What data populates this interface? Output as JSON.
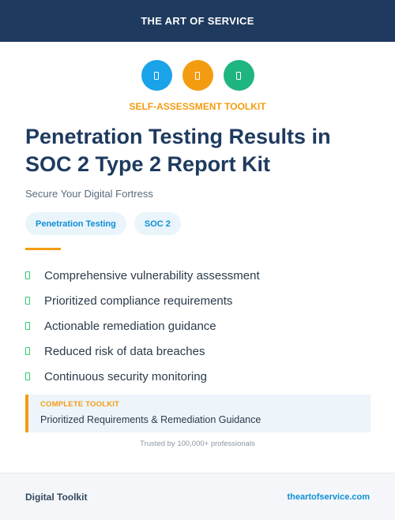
{
  "header": {
    "brand": "THE ART OF SERVICE"
  },
  "icons": [
    {
      "name": "document-icon",
      "color": "#1aa3e8"
    },
    {
      "name": "document-icon",
      "color": "#f39c12"
    },
    {
      "name": "document-icon",
      "color": "#1fb57f"
    }
  ],
  "kicker": "SELF-ASSESSMENT TOOLKIT",
  "title": "Penetration Testing Results in SOC 2 Type 2 Report Kit",
  "tagline": "Secure Your Digital Fortress",
  "tags": [
    "Penetration Testing",
    "SOC 2"
  ],
  "features": [
    "Comprehensive vulnerability assessment",
    "Prioritized compliance requirements",
    "Actionable remediation guidance",
    "Reduced risk of data breaches",
    "Continuous security monitoring"
  ],
  "callout": {
    "label": "COMPLETE TOOLKIT",
    "description": "Prioritized Requirements & Remediation Guidance"
  },
  "trusted": "Trusted by 100,000+ professionals",
  "footer": {
    "left": "Digital Toolkit",
    "right": "theartofservice.com"
  },
  "colors": {
    "navy": "#1e3a5f",
    "orange": "#f39c12",
    "blue": "#0e8fd6",
    "green": "#2ecc71"
  }
}
